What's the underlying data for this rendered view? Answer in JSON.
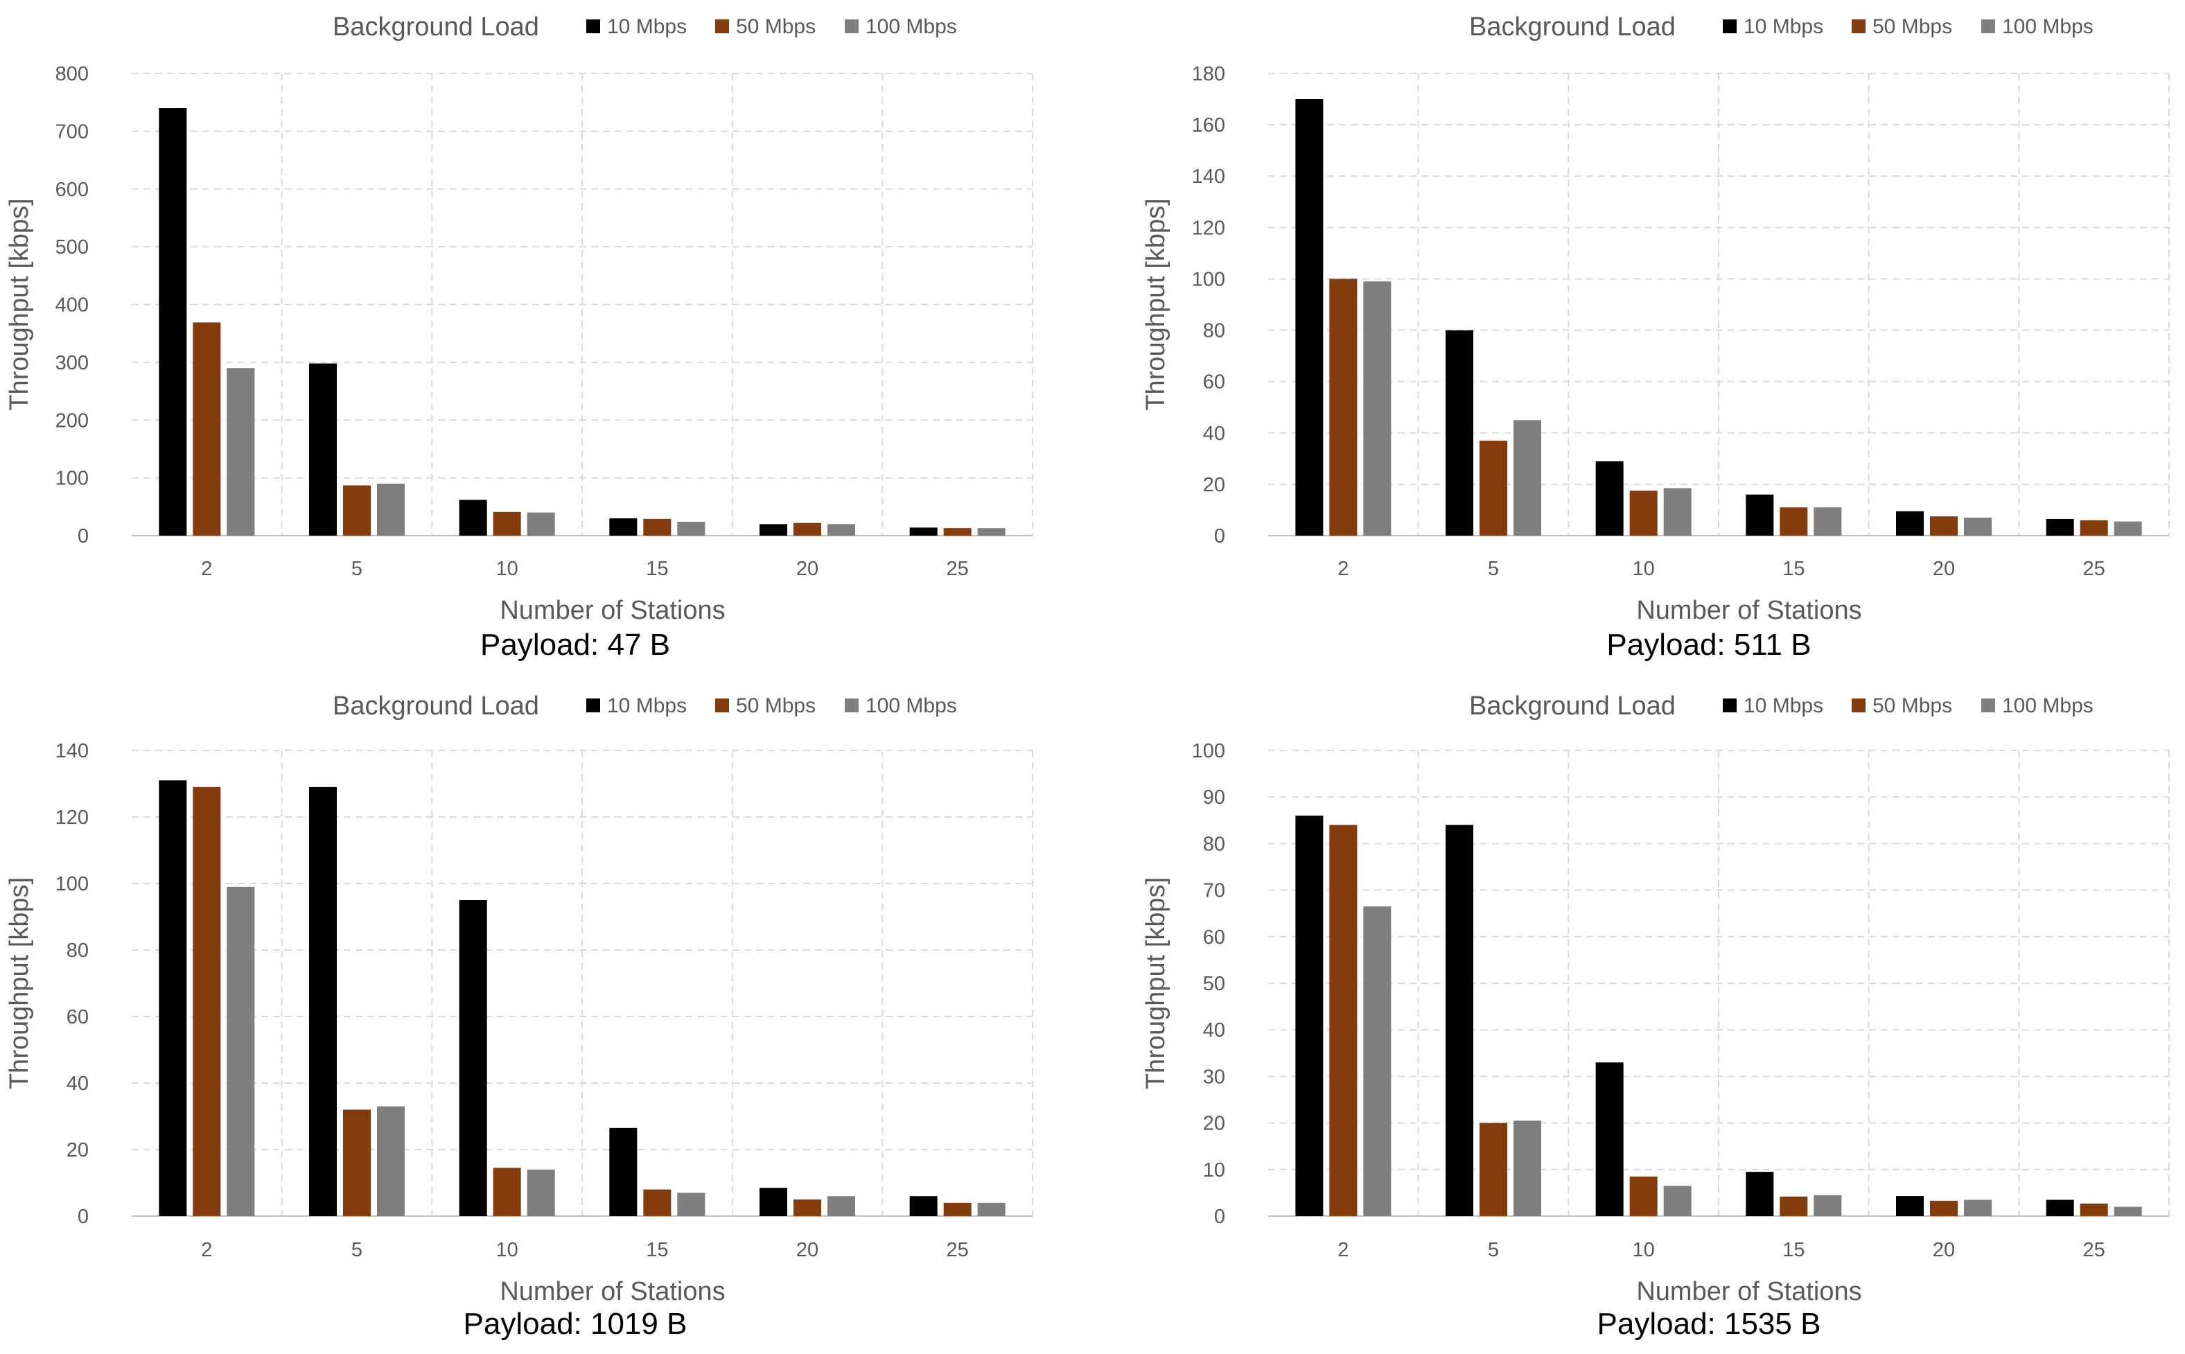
{
  "colors": {
    "10 Mbps": "#000000",
    "50 Mbps": "#843c0c",
    "100 Mbps": "#7f7f7f"
  },
  "chart_data": [
    {
      "type": "bar",
      "title": "Payload: 47 B",
      "legend_title": "Background Load",
      "legend_position": "top",
      "xlabel": "Number of Stations",
      "ylabel": "Throughput [kbps]",
      "categories": [
        "2",
        "5",
        "10",
        "15",
        "20",
        "25"
      ],
      "ylim": [
        0,
        800
      ],
      "yticks": [
        0,
        100,
        200,
        300,
        400,
        500,
        600,
        700,
        800
      ],
      "grid": true,
      "series": [
        {
          "name": "10 Mbps",
          "values": [
            740,
            298,
            62,
            30,
            20,
            14
          ]
        },
        {
          "name": "50 Mbps",
          "values": [
            369,
            87,
            41,
            29,
            22,
            13
          ]
        },
        {
          "name": "100 Mbps",
          "values": [
            290,
            90,
            40,
            24,
            20,
            13
          ]
        }
      ]
    },
    {
      "type": "bar",
      "title": "Payload: 511 B",
      "legend_title": "Background Load",
      "legend_position": "top",
      "xlabel": "Number of Stations",
      "ylabel": "Throughput [kbps]",
      "categories": [
        "2",
        "5",
        "10",
        "15",
        "20",
        "25"
      ],
      "ylim": [
        0,
        180
      ],
      "yticks": [
        0,
        20,
        40,
        60,
        80,
        100,
        120,
        140,
        160,
        180
      ],
      "grid": true,
      "series": [
        {
          "name": "10 Mbps",
          "values": [
            170,
            80,
            29,
            16,
            9.5,
            6.5
          ]
        },
        {
          "name": "50 Mbps",
          "values": [
            100,
            37,
            17.5,
            11,
            7.5,
            6
          ]
        },
        {
          "name": "100 Mbps",
          "values": [
            99,
            45,
            18.5,
            11,
            7,
            5.5
          ]
        }
      ]
    },
    {
      "type": "bar",
      "title": "Payload: 1019 B",
      "legend_title": "Background Load",
      "legend_position": "top",
      "xlabel": "Number of Stations",
      "ylabel": "Throughput [kbps]",
      "categories": [
        "2",
        "5",
        "10",
        "15",
        "20",
        "25"
      ],
      "ylim": [
        0,
        140
      ],
      "yticks": [
        0,
        20,
        40,
        60,
        80,
        100,
        120,
        140
      ],
      "grid": true,
      "series": [
        {
          "name": "10 Mbps",
          "values": [
            131,
            129,
            95,
            26.5,
            8.5,
            6
          ]
        },
        {
          "name": "50 Mbps",
          "values": [
            129,
            32,
            14.5,
            8,
            5,
            4
          ]
        },
        {
          "name": "100 Mbps",
          "values": [
            99,
            33,
            14,
            7,
            6,
            4
          ]
        }
      ]
    },
    {
      "type": "bar",
      "title": "Payload: 1535 B",
      "legend_title": "Background Load",
      "legend_position": "top",
      "xlabel": "Number of Stations",
      "ylabel": "Throughput [kbps]",
      "categories": [
        "2",
        "5",
        "10",
        "15",
        "20",
        "25"
      ],
      "ylim": [
        0,
        100
      ],
      "yticks": [
        0,
        10,
        20,
        30,
        40,
        50,
        60,
        70,
        80,
        90,
        100
      ],
      "grid": true,
      "series": [
        {
          "name": "10 Mbps",
          "values": [
            86,
            84,
            33,
            9.5,
            4.3,
            3.5
          ]
        },
        {
          "name": "50 Mbps",
          "values": [
            84,
            20,
            8.5,
            4.2,
            3.3,
            2.7
          ]
        },
        {
          "name": "100 Mbps",
          "values": [
            66.5,
            20.5,
            6.5,
            4.5,
            3.5,
            2
          ]
        }
      ]
    }
  ]
}
